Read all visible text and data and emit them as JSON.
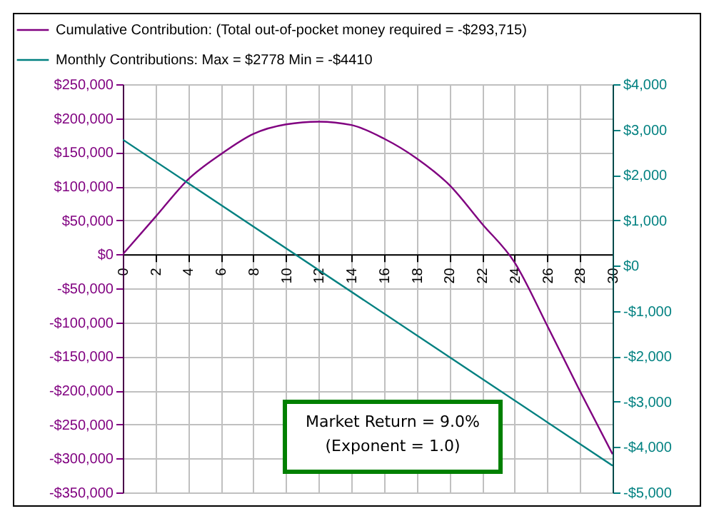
{
  "chart_data": {
    "type": "line",
    "series": [
      {
        "name": "Cumulative Contribution: (Total out-of-pocket money required = -$293,715)",
        "color": "#800080",
        "x": [
          0,
          2,
          4,
          6,
          8,
          10,
          12,
          14,
          16,
          18,
          20,
          22,
          24,
          26,
          28,
          30
        ],
        "values": [
          0,
          55000,
          110000,
          147000,
          177000,
          191000,
          195000,
          190000,
          170000,
          141000,
          102000,
          45000,
          -12000,
          -105000,
          -201000,
          -293715
        ]
      },
      {
        "name": "Monthly Contributions: Max = $2778 Min = -$4410",
        "color": "#008080",
        "axis": "y2",
        "x": [
          0,
          30
        ],
        "values": [
          2778,
          -4410
        ]
      }
    ],
    "xlim": [
      0,
      30
    ],
    "xticks": [
      0,
      2,
      4,
      6,
      8,
      10,
      12,
      14,
      16,
      18,
      20,
      22,
      24,
      26,
      28,
      30
    ],
    "ylim": [
      -350000,
      250000
    ],
    "yticks": [
      {
        "value": -350000,
        "label": "-$350,000"
      },
      {
        "value": -300000,
        "label": "-$300,000"
      },
      {
        "value": -250000,
        "label": "-$250,000"
      },
      {
        "value": -200000,
        "label": "-$200,000"
      },
      {
        "value": -150000,
        "label": "-$150,000"
      },
      {
        "value": -100000,
        "label": "-$100,000"
      },
      {
        "value": -50000,
        "label": "-$50,000"
      },
      {
        "value": 0,
        "label": "$0"
      },
      {
        "value": 50000,
        "label": "$50,000"
      },
      {
        "value": 100000,
        "label": "$100,000"
      },
      {
        "value": 150000,
        "label": "$150,000"
      },
      {
        "value": 200000,
        "label": "$200,000"
      },
      {
        "value": 250000,
        "label": "$250,000"
      }
    ],
    "y2lim": [
      -5000,
      4000
    ],
    "y2ticks": [
      {
        "value": -5000,
        "label": "-$5,000"
      },
      {
        "value": -4000,
        "label": "-$4,000"
      },
      {
        "value": -3000,
        "label": "-$3,000"
      },
      {
        "value": -2000,
        "label": "-$2,000"
      },
      {
        "value": -1000,
        "label": "-$1,000"
      },
      {
        "value": 0,
        "label": "$0"
      },
      {
        "value": 1000,
        "label": "$1,000"
      },
      {
        "value": 2000,
        "label": "$2,000"
      },
      {
        "value": 3000,
        "label": "$3,000"
      },
      {
        "value": 4000,
        "label": "$4,000"
      }
    ],
    "annotations": [
      "Market Return = 9.0%",
      "(Exponent = 1.0)"
    ],
    "grid": true,
    "legend": "top",
    "marker": "none",
    "line_style": "solid"
  }
}
